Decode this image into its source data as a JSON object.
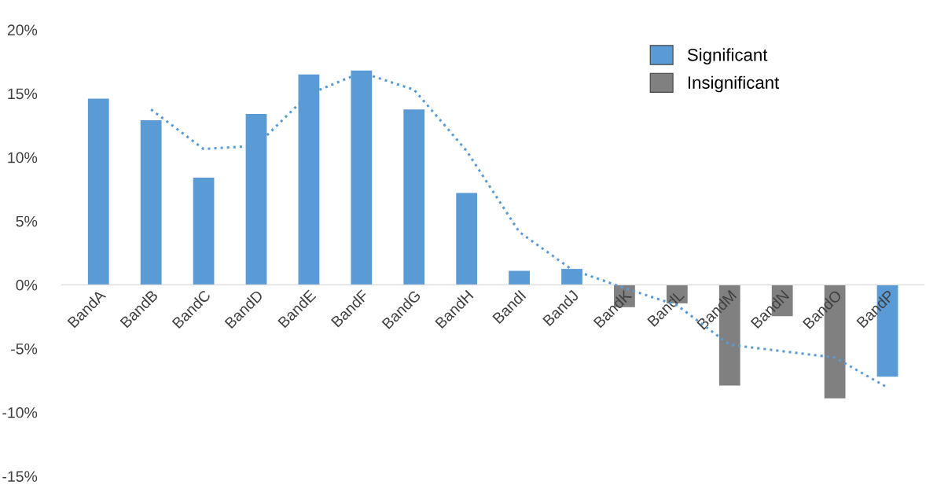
{
  "chart_data": {
    "type": "bar",
    "categories": [
      "BandA",
      "BandB",
      "BandC",
      "BandD",
      "BandE",
      "BandF",
      "BandG",
      "BandH",
      "BandI",
      "BandJ",
      "BandK",
      "BandL",
      "BandM",
      "BandN",
      "BandO",
      "BandP"
    ],
    "series": [
      {
        "name": "Significant",
        "color": "#5b9bd5",
        "values": [
          14.6,
          12.9,
          8.4,
          13.4,
          16.5,
          16.8,
          13.75,
          7.2,
          1.1,
          1.25,
          null,
          null,
          null,
          null,
          null,
          -7.2
        ]
      },
      {
        "name": "Insignificant",
        "color": "#808080",
        "values": [
          null,
          null,
          null,
          null,
          null,
          null,
          null,
          null,
          null,
          null,
          -1.75,
          -1.45,
          -7.9,
          -2.45,
          -8.9,
          null
        ]
      },
      {
        "type": "line",
        "color": "#5b9bd5",
        "line_style": "dotted",
        "marker": "none",
        "values": [
          null,
          13.75,
          10.65,
          10.9,
          14.95,
          16.65,
          15.3,
          10.5,
          4.15,
          1.2,
          -0.25,
          -1.6,
          -4.7,
          -5.2,
          -5.7,
          -8.05
        ]
      }
    ],
    "ylim": [
      -15,
      20
    ],
    "yticks": [
      {
        "value": -15,
        "label": "-15%"
      },
      {
        "value": -10,
        "label": "-10%"
      },
      {
        "value": -5,
        "label": "-5%"
      },
      {
        "value": 0,
        "label": "0%"
      },
      {
        "value": 5,
        "label": "5%"
      },
      {
        "value": 10,
        "label": "10%"
      },
      {
        "value": 15,
        "label": "15%"
      },
      {
        "value": 20,
        "label": "20%"
      }
    ],
    "grid": false,
    "legend": "top right"
  }
}
